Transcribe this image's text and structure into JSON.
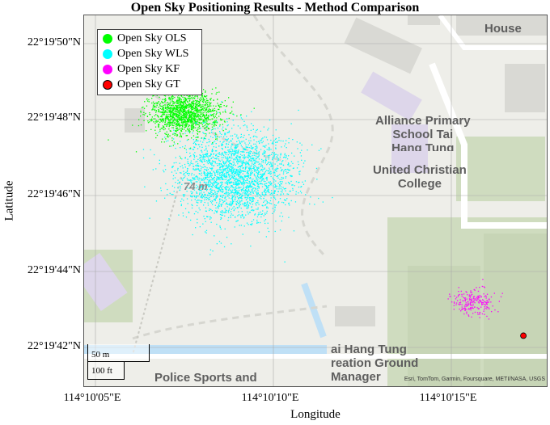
{
  "title": "Open Sky Positioning Results - Method Comparison",
  "xlabel": "Longitude",
  "ylabel": "Latitude",
  "y_ticks": [
    "22°19'50\"N",
    "22°19'48\"N",
    "22°19'46\"N",
    "22°19'44\"N",
    "22°19'42\"N"
  ],
  "x_ticks": [
    "114°10'05\"E",
    "114°10'10\"E",
    "114°10'15\"E"
  ],
  "legend": [
    {
      "label": "Open Sky OLS",
      "color": "#00ff00"
    },
    {
      "label": "Open Sky WLS",
      "color": "#00ffff"
    },
    {
      "label": "Open Sky KF",
      "color": "#ff00ff"
    },
    {
      "label": "Open Sky GT",
      "color": "#ff0000"
    }
  ],
  "scalebar": {
    "metric": "50 m",
    "imperial": "100 ft"
  },
  "attribution": "Esri, TomTom, Garmin, Foursquare, METI/NASA, USGS",
  "map_labels": {
    "house": "House",
    "school_line1": "Alliance Primary",
    "school_line2": "School Tai",
    "school_line3": "Hang Tung",
    "college_line1": "United Christian",
    "college_line2": "College",
    "elevation": "74 m",
    "ground_line1": "ai Hang Tung",
    "ground_line2": "reation Ground",
    "ground_line3": "Manager",
    "police": "Police Sports and"
  },
  "chart_data": {
    "type": "scatter",
    "title": "Open Sky Positioning Results - Method Comparison",
    "xlabel": "Longitude",
    "ylabel": "Latitude",
    "xlim": [
      "114°10'04.4\"E",
      "114°10'17.4\"E"
    ],
    "ylim": [
      "22°19'41.0\"N",
      "22°19'51.0\"N"
    ],
    "x_tick_labels": [
      "114°10'05\"E",
      "114°10'10\"E",
      "114°10'15\"E"
    ],
    "y_tick_labels": [
      "22°19'42\"N",
      "22°19'44\"N",
      "22°19'46\"N",
      "22°19'48\"N",
      "22°19'50\"N"
    ],
    "grid": true,
    "legend_position": "top-left",
    "series": [
      {
        "name": "Open Sky OLS",
        "color": "#00ff00",
        "center": [
          "114°10'07.2\"E",
          "22°19'48.4\"N"
        ],
        "spread_arcsec": [
          0.5,
          0.3
        ],
        "points": 1500
      },
      {
        "name": "Open Sky WLS",
        "color": "#00ffff",
        "center": [
          "114°10'08.6\"E",
          "22°19'46.7\"N"
        ],
        "spread_arcsec": [
          0.8,
          0.6
        ],
        "points": 2500
      },
      {
        "name": "Open Sky KF",
        "color": "#ff00ff",
        "center": [
          "114°10'15.3\"E",
          "22°19'43.3\"N"
        ],
        "spread_arcsec": [
          0.3,
          0.2
        ],
        "points": 220
      },
      {
        "name": "Open Sky GT",
        "color": "#ff0000",
        "points_xy": [
          [
            "114°10'16.7\"E",
            "22°19'42.4\"N"
          ]
        ]
      }
    ]
  }
}
